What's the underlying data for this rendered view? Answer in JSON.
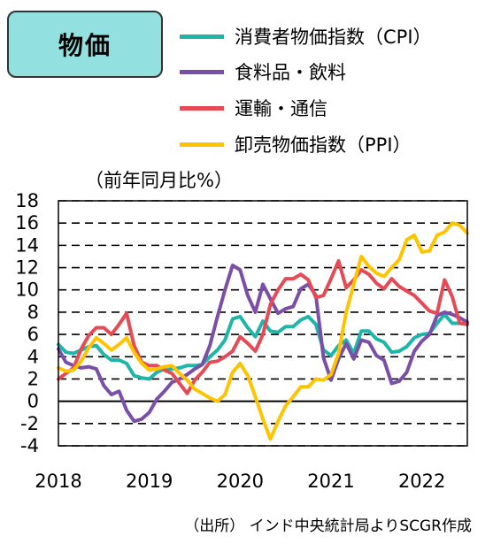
{
  "title": "物価",
  "ylabel": "（前年同月比%）",
  "source": "（出所） インド中央統計局よりSCGR作成",
  "chart_data": {
    "type": "line",
    "y_ticks": [
      18,
      16,
      14,
      12,
      10,
      8,
      6,
      4,
      2,
      0,
      -2,
      -4
    ],
    "ylim": [
      -4,
      18
    ],
    "x_ticks": [
      "2018",
      "2019",
      "2020",
      "2021",
      "2022"
    ],
    "x_tick_values": [
      2018.0,
      2019.0,
      2020.0,
      2021.0,
      2022.0
    ],
    "xlim": [
      2018.0,
      2022.5
    ],
    "grid": "horizontal dashed",
    "legend_position": "top-right",
    "series": [
      {
        "name": "消費者物価指数（CPI）",
        "color": "#1fb5a8",
        "x": [
          2018.0,
          2018.083,
          2018.167,
          2018.25,
          2018.333,
          2018.417,
          2018.5,
          2018.583,
          2018.667,
          2018.75,
          2018.833,
          2018.917,
          2019.0,
          2019.083,
          2019.167,
          2019.25,
          2019.333,
          2019.417,
          2019.5,
          2019.583,
          2019.667,
          2019.75,
          2019.833,
          2019.917,
          2020.0,
          2020.083,
          2020.167,
          2020.25,
          2020.333,
          2020.417,
          2020.5,
          2020.583,
          2020.667,
          2020.75,
          2020.833,
          2020.917,
          2021.0,
          2021.083,
          2021.167,
          2021.25,
          2021.333,
          2021.417,
          2021.5,
          2021.583,
          2021.667,
          2021.75,
          2021.833,
          2021.917,
          2022.0,
          2022.083,
          2022.167,
          2022.25,
          2022.333,
          2022.417,
          2022.5
        ],
        "y": [
          5.1,
          4.4,
          4.3,
          4.6,
          4.9,
          5.0,
          4.2,
          3.7,
          3.7,
          3.4,
          2.3,
          2.1,
          2.0,
          2.6,
          2.9,
          2.9,
          3.0,
          3.2,
          3.2,
          3.3,
          4.0,
          4.6,
          5.5,
          7.4,
          7.6,
          6.6,
          5.8,
          7.2,
          6.3,
          6.2,
          6.7,
          6.7,
          7.3,
          7.6,
          6.9,
          4.6,
          4.1,
          5.0,
          5.5,
          4.3,
          6.3,
          6.3,
          5.6,
          5.3,
          4.4,
          4.5,
          4.9,
          5.7,
          6.0,
          6.1,
          7.0,
          7.8,
          7.0,
          7.0,
          7.0
        ]
      },
      {
        "name": "食料品・飲料",
        "color": "#7b4fa8",
        "x": [
          2018.0,
          2018.083,
          2018.167,
          2018.25,
          2018.333,
          2018.417,
          2018.5,
          2018.583,
          2018.667,
          2018.75,
          2018.833,
          2018.917,
          2019.0,
          2019.083,
          2019.167,
          2019.25,
          2019.333,
          2019.417,
          2019.5,
          2019.583,
          2019.667,
          2019.75,
          2019.833,
          2019.917,
          2020.0,
          2020.083,
          2020.167,
          2020.25,
          2020.333,
          2020.417,
          2020.5,
          2020.583,
          2020.667,
          2020.75,
          2020.833,
          2020.917,
          2021.0,
          2021.083,
          2021.167,
          2021.25,
          2021.333,
          2021.417,
          2021.5,
          2021.583,
          2021.667,
          2021.75,
          2021.833,
          2021.917,
          2022.0,
          2022.083,
          2022.167,
          2022.25,
          2022.333,
          2022.417,
          2022.5
        ],
        "y": [
          4.7,
          3.5,
          3.2,
          3.0,
          3.1,
          2.9,
          1.4,
          0.6,
          0.9,
          -0.8,
          -1.8,
          -1.6,
          -1.0,
          0.2,
          0.9,
          1.7,
          2.0,
          2.4,
          2.9,
          3.3,
          5.0,
          7.6,
          10.0,
          12.2,
          11.8,
          9.5,
          8.0,
          10.5,
          9.2,
          7.9,
          8.3,
          8.5,
          10.1,
          10.5,
          9.5,
          3.9,
          1.9,
          3.8,
          5.2,
          3.8,
          5.5,
          5.3,
          4.1,
          3.7,
          1.6,
          1.8,
          2.6,
          4.5,
          5.4,
          6.0,
          7.7,
          8.0,
          7.8,
          7.5,
          7.1
        ]
      },
      {
        "name": "運輸・通信",
        "color": "#e64a55",
        "x": [
          2018.0,
          2018.083,
          2018.167,
          2018.25,
          2018.333,
          2018.417,
          2018.5,
          2018.583,
          2018.667,
          2018.75,
          2018.833,
          2018.917,
          2019.0,
          2019.083,
          2019.167,
          2019.25,
          2019.333,
          2019.417,
          2019.5,
          2019.583,
          2019.667,
          2019.75,
          2019.833,
          2019.917,
          2020.0,
          2020.083,
          2020.167,
          2020.25,
          2020.333,
          2020.417,
          2020.5,
          2020.583,
          2020.667,
          2020.75,
          2020.833,
          2020.917,
          2021.0,
          2021.083,
          2021.167,
          2021.25,
          2021.333,
          2021.417,
          2021.5,
          2021.583,
          2021.667,
          2021.75,
          2021.833,
          2021.917,
          2022.0,
          2022.083,
          2022.167,
          2022.25,
          2022.333,
          2022.417,
          2022.5
        ],
        "y": [
          2.0,
          2.5,
          3.0,
          4.7,
          5.9,
          6.6,
          6.6,
          6.0,
          6.9,
          7.9,
          5.0,
          3.5,
          3.2,
          3.2,
          2.8,
          2.5,
          1.6,
          0.7,
          1.9,
          2.6,
          3.5,
          3.6,
          4.0,
          4.5,
          5.8,
          5.2,
          4.5,
          6.0,
          8.7,
          10.0,
          11.0,
          11.0,
          11.4,
          10.9,
          9.3,
          9.5,
          11.0,
          12.6,
          10.2,
          10.9,
          11.8,
          11.4,
          10.6,
          10.1,
          11.0,
          10.3,
          9.9,
          9.5,
          8.8,
          8.1,
          7.9,
          10.9,
          9.4,
          7.0,
          6.9
        ]
      },
      {
        "name": "卸売物価指数（PPI）",
        "color": "#ffc400",
        "x": [
          2018.0,
          2018.083,
          2018.167,
          2018.25,
          2018.333,
          2018.417,
          2018.5,
          2018.583,
          2018.667,
          2018.75,
          2018.833,
          2018.917,
          2019.0,
          2019.083,
          2019.167,
          2019.25,
          2019.333,
          2019.417,
          2019.5,
          2019.583,
          2019.667,
          2019.75,
          2019.833,
          2019.917,
          2020.0,
          2020.083,
          2020.167,
          2020.25,
          2020.333,
          2020.417,
          2020.5,
          2020.583,
          2020.667,
          2020.75,
          2020.833,
          2020.917,
          2021.0,
          2021.083,
          2021.167,
          2021.25,
          2021.333,
          2021.417,
          2021.5,
          2021.583,
          2021.667,
          2021.75,
          2021.833,
          2021.917,
          2022.0,
          2022.083,
          2022.167,
          2022.25,
          2022.333,
          2022.417,
          2022.5
        ],
        "y": [
          3.0,
          2.7,
          2.8,
          3.6,
          4.8,
          5.7,
          5.2,
          4.6,
          5.1,
          5.7,
          4.4,
          3.4,
          2.8,
          2.9,
          3.1,
          3.2,
          2.5,
          1.9,
          1.1,
          0.7,
          0.3,
          0.0,
          0.6,
          2.6,
          3.4,
          2.3,
          0.4,
          -1.6,
          -3.4,
          -1.8,
          -0.4,
          0.4,
          1.3,
          1.3,
          2.0,
          1.9,
          2.4,
          4.3,
          8.0,
          10.5,
          13.0,
          12.1,
          11.5,
          11.2,
          12.0,
          12.7,
          14.5,
          14.9,
          13.4,
          13.5,
          14.9,
          15.2,
          16.0,
          15.8,
          15.1
        ]
      }
    ]
  }
}
